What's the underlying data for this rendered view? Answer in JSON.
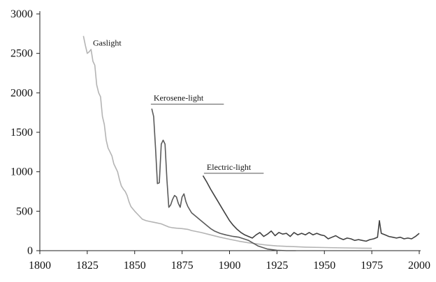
{
  "chart_data": {
    "type": "line",
    "title": "",
    "xlabel": "",
    "ylabel": "",
    "xlim": [
      1800,
      2000
    ],
    "ylim": [
      0,
      3000
    ],
    "x_ticks": [
      1800,
      1825,
      1850,
      1875,
      1900,
      1925,
      1950,
      1975,
      2000
    ],
    "y_ticks": [
      0,
      500,
      1000,
      1500,
      2000,
      2500,
      3000
    ],
    "grid": false,
    "legend": "none",
    "colors": {
      "axis": "#222222",
      "gaslight": "#b4b4b4",
      "kerosene": "#5a5a5a",
      "electric": "#404040"
    },
    "series": [
      {
        "name": "Gaslight",
        "label_year": 1828,
        "label_value": 2600,
        "label_underline_to": 1845,
        "points": [
          [
            1823,
            2720
          ],
          [
            1824,
            2600
          ],
          [
            1825,
            2500
          ],
          [
            1826,
            2520
          ],
          [
            1827,
            2550
          ],
          [
            1828,
            2400
          ],
          [
            1829,
            2350
          ],
          [
            1830,
            2100
          ],
          [
            1831,
            2000
          ],
          [
            1832,
            1950
          ],
          [
            1833,
            1700
          ],
          [
            1834,
            1600
          ],
          [
            1835,
            1400
          ],
          [
            1836,
            1300
          ],
          [
            1837,
            1250
          ],
          [
            1838,
            1200
          ],
          [
            1839,
            1100
          ],
          [
            1840,
            1050
          ],
          [
            1841,
            1000
          ],
          [
            1842,
            900
          ],
          [
            1843,
            820
          ],
          [
            1844,
            780
          ],
          [
            1845,
            750
          ],
          [
            1846,
            700
          ],
          [
            1847,
            620
          ],
          [
            1848,
            560
          ],
          [
            1849,
            530
          ],
          [
            1850,
            500
          ],
          [
            1852,
            450
          ],
          [
            1854,
            400
          ],
          [
            1856,
            380
          ],
          [
            1858,
            370
          ],
          [
            1860,
            360
          ],
          [
            1862,
            350
          ],
          [
            1864,
            340
          ],
          [
            1866,
            320
          ],
          [
            1868,
            300
          ],
          [
            1870,
            290
          ],
          [
            1872,
            285
          ],
          [
            1875,
            280
          ],
          [
            1878,
            270
          ],
          [
            1880,
            255
          ],
          [
            1885,
            230
          ],
          [
            1890,
            200
          ],
          [
            1895,
            170
          ],
          [
            1900,
            145
          ],
          [
            1905,
            120
          ],
          [
            1910,
            100
          ],
          [
            1915,
            85
          ],
          [
            1920,
            70
          ],
          [
            1925,
            60
          ],
          [
            1930,
            55
          ],
          [
            1935,
            50
          ],
          [
            1940,
            45
          ],
          [
            1950,
            40
          ],
          [
            1960,
            35
          ],
          [
            1970,
            32
          ],
          [
            1975,
            30
          ]
        ]
      },
      {
        "name": "Kerosene-light",
        "label_year": 1860,
        "label_value": 1900,
        "label_underline_to": 1897,
        "points": [
          [
            1859,
            1800
          ],
          [
            1860,
            1700
          ],
          [
            1861,
            1300
          ],
          [
            1862,
            850
          ],
          [
            1863,
            860
          ],
          [
            1864,
            1350
          ],
          [
            1865,
            1400
          ],
          [
            1866,
            1350
          ],
          [
            1867,
            900
          ],
          [
            1868,
            550
          ],
          [
            1869,
            580
          ],
          [
            1870,
            650
          ],
          [
            1871,
            700
          ],
          [
            1872,
            680
          ],
          [
            1873,
            600
          ],
          [
            1874,
            550
          ],
          [
            1875,
            680
          ],
          [
            1876,
            720
          ],
          [
            1877,
            620
          ],
          [
            1878,
            560
          ],
          [
            1879,
            520
          ],
          [
            1880,
            480
          ],
          [
            1882,
            440
          ],
          [
            1884,
            400
          ],
          [
            1886,
            360
          ],
          [
            1888,
            320
          ],
          [
            1890,
            280
          ],
          [
            1892,
            250
          ],
          [
            1895,
            220
          ],
          [
            1898,
            200
          ],
          [
            1900,
            190
          ],
          [
            1902,
            180
          ],
          [
            1905,
            170
          ],
          [
            1910,
            130
          ],
          [
            1915,
            60
          ],
          [
            1920,
            20
          ],
          [
            1925,
            5
          ],
          [
            1930,
            0
          ],
          [
            1935,
            0
          ]
        ]
      },
      {
        "name": "Electric-light",
        "label_year": 1888,
        "label_value": 1025,
        "label_underline_to": 1918,
        "points": [
          [
            1886,
            950
          ],
          [
            1888,
            870
          ],
          [
            1890,
            780
          ],
          [
            1892,
            700
          ],
          [
            1894,
            620
          ],
          [
            1896,
            540
          ],
          [
            1898,
            460
          ],
          [
            1900,
            380
          ],
          [
            1902,
            320
          ],
          [
            1904,
            270
          ],
          [
            1906,
            230
          ],
          [
            1908,
            200
          ],
          [
            1910,
            180
          ],
          [
            1912,
            160
          ],
          [
            1914,
            200
          ],
          [
            1916,
            230
          ],
          [
            1918,
            180
          ],
          [
            1920,
            210
          ],
          [
            1922,
            250
          ],
          [
            1924,
            190
          ],
          [
            1926,
            230
          ],
          [
            1928,
            210
          ],
          [
            1930,
            220
          ],
          [
            1932,
            180
          ],
          [
            1934,
            230
          ],
          [
            1936,
            200
          ],
          [
            1938,
            220
          ],
          [
            1940,
            200
          ],
          [
            1942,
            230
          ],
          [
            1944,
            200
          ],
          [
            1946,
            220
          ],
          [
            1948,
            200
          ],
          [
            1950,
            190
          ],
          [
            1952,
            150
          ],
          [
            1954,
            170
          ],
          [
            1956,
            190
          ],
          [
            1958,
            160
          ],
          [
            1960,
            140
          ],
          [
            1962,
            160
          ],
          [
            1964,
            150
          ],
          [
            1966,
            130
          ],
          [
            1968,
            140
          ],
          [
            1970,
            130
          ],
          [
            1972,
            120
          ],
          [
            1974,
            140
          ],
          [
            1976,
            150
          ],
          [
            1978,
            170
          ],
          [
            1979,
            380
          ],
          [
            1980,
            220
          ],
          [
            1982,
            200
          ],
          [
            1984,
            180
          ],
          [
            1986,
            170
          ],
          [
            1988,
            160
          ],
          [
            1990,
            170
          ],
          [
            1992,
            150
          ],
          [
            1994,
            160
          ],
          [
            1996,
            150
          ],
          [
            1998,
            180
          ],
          [
            2000,
            220
          ]
        ]
      }
    ]
  }
}
